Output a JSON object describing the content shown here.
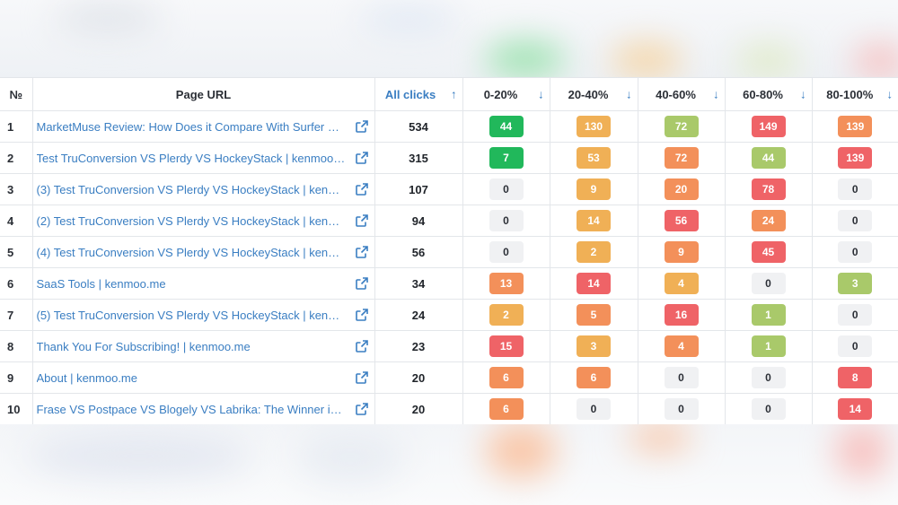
{
  "headers": {
    "num": "№",
    "url": "Page URL",
    "clicks": "All clicks",
    "buckets": [
      "0-20%",
      "20-40%",
      "40-60%",
      "60-80%",
      "80-100%"
    ],
    "clicks_sort_icon": "arrow-up-icon",
    "bucket_sort_icon": "arrow-down-icon"
  },
  "colors": {
    "link": "#3a7ec2",
    "zero": "#f0f1f3"
  },
  "rows": [
    {
      "num": "1",
      "url": "MarketMuse Review: How Does it Compare With Surfer & Fr…",
      "clicks": "534",
      "cells": [
        {
          "v": "44",
          "c": "#21b85b"
        },
        {
          "v": "130",
          "c": "#f0b056"
        },
        {
          "v": "72",
          "c": "#a9c96a"
        },
        {
          "v": "149",
          "c": "#ef6367"
        },
        {
          "v": "139",
          "c": "#f3905a"
        }
      ]
    },
    {
      "num": "2",
      "url": "Test TruConversion VS Plerdy VS HockeyStack | kenmoo.me",
      "clicks": "315",
      "cells": [
        {
          "v": "7",
          "c": "#21b85b"
        },
        {
          "v": "53",
          "c": "#f0b056"
        },
        {
          "v": "72",
          "c": "#f3905a"
        },
        {
          "v": "44",
          "c": "#a9c96a"
        },
        {
          "v": "139",
          "c": "#ef6367"
        }
      ]
    },
    {
      "num": "3",
      "url": "(3) Test TruConversion VS Plerdy VS HockeyStack | kenmoo.…",
      "clicks": "107",
      "cells": [
        {
          "v": "0",
          "c": "zero"
        },
        {
          "v": "9",
          "c": "#f0b056"
        },
        {
          "v": "20",
          "c": "#f3905a"
        },
        {
          "v": "78",
          "c": "#ef6367"
        },
        {
          "v": "0",
          "c": "zero"
        }
      ]
    },
    {
      "num": "4",
      "url": "(2) Test TruConversion VS Plerdy VS HockeyStack | kenmoo.…",
      "clicks": "94",
      "cells": [
        {
          "v": "0",
          "c": "zero"
        },
        {
          "v": "14",
          "c": "#f0b056"
        },
        {
          "v": "56",
          "c": "#ef6367"
        },
        {
          "v": "24",
          "c": "#f3905a"
        },
        {
          "v": "0",
          "c": "zero"
        }
      ]
    },
    {
      "num": "5",
      "url": "(4) Test TruConversion VS Plerdy VS HockeyStack | kenmoo.…",
      "clicks": "56",
      "cells": [
        {
          "v": "0",
          "c": "zero"
        },
        {
          "v": "2",
          "c": "#f0b056"
        },
        {
          "v": "9",
          "c": "#f3905a"
        },
        {
          "v": "45",
          "c": "#ef6367"
        },
        {
          "v": "0",
          "c": "zero"
        }
      ]
    },
    {
      "num": "6",
      "url": "SaaS Tools | kenmoo.me",
      "clicks": "34",
      "cells": [
        {
          "v": "13",
          "c": "#f3905a"
        },
        {
          "v": "14",
          "c": "#ef6367"
        },
        {
          "v": "4",
          "c": "#f0b056"
        },
        {
          "v": "0",
          "c": "zero"
        },
        {
          "v": "3",
          "c": "#a9c96a"
        }
      ]
    },
    {
      "num": "7",
      "url": "(5) Test TruConversion VS Plerdy VS HockeyStack | kenmoo.…",
      "clicks": "24",
      "cells": [
        {
          "v": "2",
          "c": "#f0b056"
        },
        {
          "v": "5",
          "c": "#f3905a"
        },
        {
          "v": "16",
          "c": "#ef6367"
        },
        {
          "v": "1",
          "c": "#a9c96a"
        },
        {
          "v": "0",
          "c": "zero"
        }
      ]
    },
    {
      "num": "8",
      "url": "Thank You For Subscribing! | kenmoo.me",
      "clicks": "23",
      "cells": [
        {
          "v": "15",
          "c": "#ef6367"
        },
        {
          "v": "3",
          "c": "#f0b056"
        },
        {
          "v": "4",
          "c": "#f3905a"
        },
        {
          "v": "1",
          "c": "#a9c96a"
        },
        {
          "v": "0",
          "c": "zero"
        }
      ]
    },
    {
      "num": "9",
      "url": "About | kenmoo.me",
      "clicks": "20",
      "cells": [
        {
          "v": "6",
          "c": "#f3905a"
        },
        {
          "v": "6",
          "c": "#f3905a"
        },
        {
          "v": "0",
          "c": "zero"
        },
        {
          "v": "0",
          "c": "zero"
        },
        {
          "v": "8",
          "c": "#ef6367"
        }
      ]
    },
    {
      "num": "10",
      "url": "Frase VS Postpace VS Blogely VS Labrika: The Winner is… |…",
      "clicks": "20",
      "cells": [
        {
          "v": "6",
          "c": "#f3905a"
        },
        {
          "v": "0",
          "c": "zero"
        },
        {
          "v": "0",
          "c": "zero"
        },
        {
          "v": "0",
          "c": "zero"
        },
        {
          "v": "14",
          "c": "#ef6367"
        }
      ]
    }
  ]
}
